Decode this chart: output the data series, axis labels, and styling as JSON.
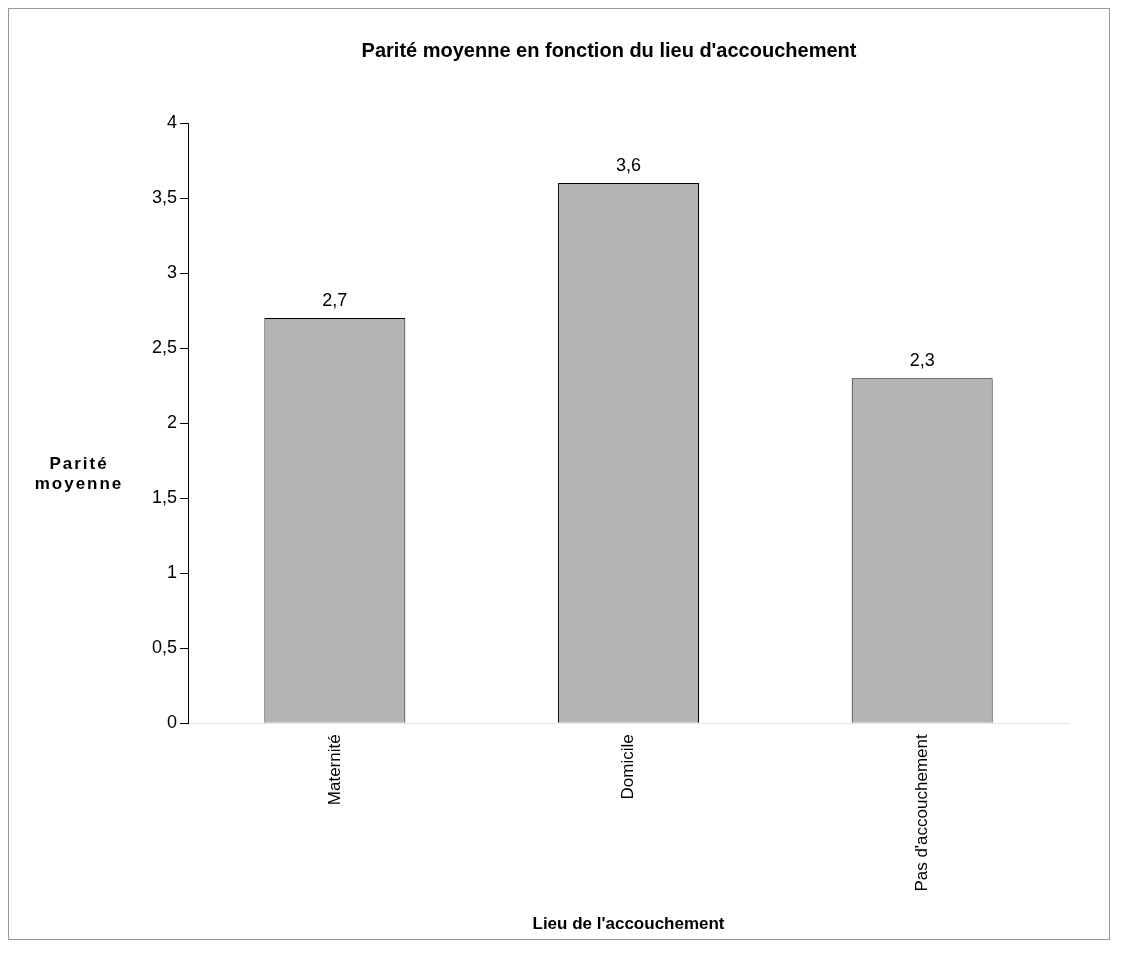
{
  "chart_data": {
    "type": "bar",
    "title": "Parité moyenne en fonction du lieu d'accouchement",
    "xlabel": "Lieu de l'accouchement",
    "ylabel": "Parité moyenne",
    "categories": [
      "Maternité",
      "Domicile",
      "Pas d'accouchement"
    ],
    "values": [
      2.7,
      3.6,
      2.3
    ],
    "value_labels": [
      "2,7",
      "3,6",
      "2,3"
    ],
    "color": "#b4b4b4",
    "ylim": [
      0,
      4
    ],
    "yticks": [
      0,
      {
        "value": 0.5,
        "label": "0,5"
      },
      1,
      {
        "value": 1.5,
        "label": "1,5"
      },
      2,
      {
        "value": 2.5,
        "label": "2,5"
      },
      3,
      {
        "value": 3.5,
        "label": "3,5"
      },
      4
    ],
    "grid": false,
    "legend": false
  }
}
